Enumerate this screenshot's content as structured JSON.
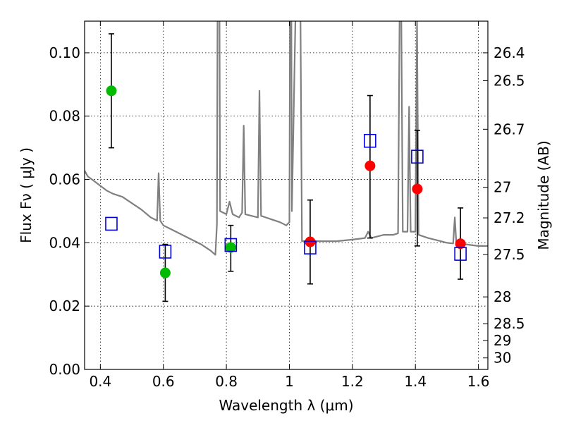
{
  "chart_data": {
    "type": "scatter",
    "xlabel": "Wavelength  λ (μm)",
    "ylabel": "Flux  Fν  ( μJy )",
    "y2label": "Magnitude (AB)",
    "xlim": [
      0.35,
      1.63
    ],
    "ylim": [
      0.0,
      0.11
    ],
    "x_ticks": [
      0.4,
      0.6,
      0.8,
      1.0,
      1.2,
      1.4,
      1.6
    ],
    "x_tick_labels": [
      "0.4",
      "0.6",
      "0.8",
      "1",
      "1.2",
      "1.4",
      "1.6"
    ],
    "y_ticks": [
      0.0,
      0.02,
      0.04,
      0.06,
      0.08,
      0.1
    ],
    "y_tick_labels": [
      "0.00",
      "0.02",
      "0.04",
      "0.06",
      "0.08",
      "0.10"
    ],
    "mag_ticks": [
      26.4,
      26.5,
      26.7,
      27,
      27.2,
      27.5,
      28,
      28.5,
      29,
      30
    ],
    "mag_tick_labels": [
      "26.4",
      "26.5",
      "26.7",
      "27",
      "27.2",
      "27.5",
      "28",
      "28.5",
      "29",
      "30"
    ],
    "grid": true,
    "colors": {
      "model": "#808080",
      "green_points": "#00bb00",
      "red_points": "#ff0000",
      "model_boxes": "#0000dd",
      "errorbars": "#000000"
    },
    "series": [
      {
        "style": "filled-circle-green",
        "points": [
          {
            "x": 0.435,
            "y": 0.088,
            "yerr_low": 0.07,
            "yerr_high": 0.106
          },
          {
            "x": 0.606,
            "y": 0.0305,
            "yerr_low": 0.0215,
            "yerr_high": 0.0395
          },
          {
            "x": 0.814,
            "y": 0.0385,
            "yerr_low": 0.031,
            "yerr_high": 0.0455
          }
        ]
      },
      {
        "style": "filled-circle-red",
        "points": [
          {
            "x": 1.066,
            "y": 0.0403,
            "yerr_low": 0.027,
            "yerr_high": 0.0535
          },
          {
            "x": 1.256,
            "y": 0.0643,
            "yerr_low": 0.0415,
            "yerr_high": 0.0865
          },
          {
            "x": 1.406,
            "y": 0.057,
            "yerr_low": 0.039,
            "yerr_high": 0.0755
          },
          {
            "x": 1.543,
            "y": 0.0397,
            "yerr_low": 0.0285,
            "yerr_high": 0.051
          }
        ]
      },
      {
        "style": "open-square-blue",
        "points": [
          {
            "x": 0.435,
            "y": 0.046
          },
          {
            "x": 0.606,
            "y": 0.0372
          },
          {
            "x": 0.814,
            "y": 0.0393
          },
          {
            "x": 1.066,
            "y": 0.0385
          },
          {
            "x": 1.256,
            "y": 0.0722
          },
          {
            "x": 1.406,
            "y": 0.0672
          },
          {
            "x": 1.543,
            "y": 0.0365
          }
        ]
      }
    ],
    "model_spectrum": [
      [
        0.35,
        0.0628
      ],
      [
        0.36,
        0.061
      ],
      [
        0.38,
        0.0595
      ],
      [
        0.4,
        0.058
      ],
      [
        0.42,
        0.0565
      ],
      [
        0.44,
        0.0555
      ],
      [
        0.47,
        0.0545
      ],
      [
        0.5,
        0.0525
      ],
      [
        0.53,
        0.0505
      ],
      [
        0.56,
        0.048
      ],
      [
        0.58,
        0.047
      ],
      [
        0.585,
        0.062
      ],
      [
        0.59,
        0.047
      ],
      [
        0.6,
        0.0455
      ],
      [
        0.63,
        0.044
      ],
      [
        0.66,
        0.0425
      ],
      [
        0.69,
        0.041
      ],
      [
        0.72,
        0.0395
      ],
      [
        0.75,
        0.0375
      ],
      [
        0.765,
        0.0362
      ],
      [
        0.77,
        0.046
      ],
      [
        0.772,
        0.115
      ],
      [
        0.778,
        0.115
      ],
      [
        0.78,
        0.05
      ],
      [
        0.8,
        0.049
      ],
      [
        0.81,
        0.053
      ],
      [
        0.82,
        0.049
      ],
      [
        0.84,
        0.048
      ],
      [
        0.85,
        0.0495
      ],
      [
        0.855,
        0.077
      ],
      [
        0.86,
        0.049
      ],
      [
        0.88,
        0.0485
      ],
      [
        0.9,
        0.048
      ],
      [
        0.905,
        0.088
      ],
      [
        0.91,
        0.0485
      ],
      [
        0.94,
        0.0475
      ],
      [
        0.97,
        0.0465
      ],
      [
        0.99,
        0.0455
      ],
      [
        1.0,
        0.0465
      ],
      [
        1.002,
        0.115
      ],
      [
        1.006,
        0.115
      ],
      [
        1.008,
        0.05
      ],
      [
        1.02,
        0.115
      ],
      [
        1.035,
        0.115
      ],
      [
        1.04,
        0.0405
      ],
      [
        1.06,
        0.0405
      ],
      [
        1.1,
        0.0405
      ],
      [
        1.15,
        0.0405
      ],
      [
        1.2,
        0.041
      ],
      [
        1.24,
        0.0415
      ],
      [
        1.25,
        0.0435
      ],
      [
        1.26,
        0.0415
      ],
      [
        1.3,
        0.0425
      ],
      [
        1.33,
        0.0425
      ],
      [
        1.345,
        0.043
      ],
      [
        1.35,
        0.115
      ],
      [
        1.355,
        0.115
      ],
      [
        1.36,
        0.0435
      ],
      [
        1.375,
        0.0435
      ],
      [
        1.38,
        0.083
      ],
      [
        1.385,
        0.0435
      ],
      [
        1.4,
        0.0435
      ],
      [
        1.405,
        0.11
      ],
      [
        1.41,
        0.0425
      ],
      [
        1.44,
        0.0415
      ],
      [
        1.48,
        0.0405
      ],
      [
        1.5,
        0.04
      ],
      [
        1.52,
        0.0398
      ],
      [
        1.525,
        0.048
      ],
      [
        1.53,
        0.0398
      ],
      [
        1.56,
        0.0395
      ],
      [
        1.6,
        0.039
      ],
      [
        1.63,
        0.039
      ]
    ]
  }
}
